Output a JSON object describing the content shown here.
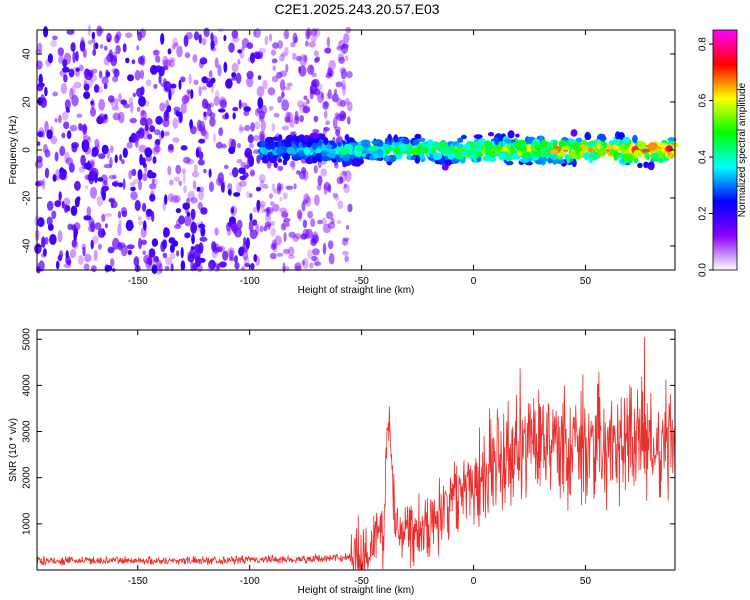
{
  "figure": {
    "title": "C2E1.2025.243.20.57.E03"
  },
  "chart_data": [
    {
      "type": "heatmap",
      "title": "C2E1.2025.243.20.57.E03",
      "xlabel": "Height of straight line (km)",
      "ylabel": "Frequency (Hz)",
      "xlim": [
        -195,
        90
      ],
      "ylim": [
        -50,
        50
      ],
      "x_ticks": [
        -150,
        -100,
        -50,
        0,
        50
      ],
      "y_ticks": [
        -40,
        -20,
        0,
        20,
        40
      ],
      "colorbar": {
        "label": "Normalized spectral amplitude",
        "range": [
          0,
          0.85
        ],
        "ticks": [
          0.0,
          0.2,
          0.4,
          0.6,
          0.8
        ],
        "colors": [
          "#ffffff",
          "#8a00ff",
          "#0000ff",
          "#00ffff",
          "#00ff00",
          "#ffff00",
          "#ff0000",
          "#ff00ff"
        ]
      },
      "description_regions": [
        {
          "x_range": [
            -195,
            -95
          ],
          "y_range": [
            -50,
            50
          ],
          "amplitude_range": [
            0.0,
            0.15
          ]
        },
        {
          "x_range": [
            -95,
            -55
          ],
          "y_range": [
            -50,
            50
          ],
          "amplitude_range": [
            0.0,
            0.08
          ]
        },
        {
          "x_range": [
            -95,
            90
          ],
          "y_range": [
            -8,
            8
          ],
          "amplitude_range": [
            0.1,
            0.85
          ]
        }
      ]
    },
    {
      "type": "line",
      "xlabel": "Height of straight line (km)",
      "ylabel": "SNR (10 * v/v)",
      "xlim": [
        -195,
        90
      ],
      "ylim": [
        0,
        5200
      ],
      "x_ticks": [
        -150,
        -100,
        -50,
        0,
        50
      ],
      "y_ticks": [
        1000,
        2000,
        3000,
        4000,
        5000
      ],
      "color": "#e8302e",
      "series": [
        {
          "x": [
            -195,
            -180,
            -160,
            -140,
            -120,
            -100,
            -80,
            -60,
            -50,
            -45,
            -40,
            -38,
            -35,
            -30,
            -25,
            -20,
            -15,
            -10,
            -5,
            0,
            5,
            10,
            15,
            20,
            25,
            30,
            35,
            40,
            45,
            50,
            55,
            60,
            65,
            70,
            75,
            80,
            85,
            90
          ],
          "y": [
            200,
            200,
            210,
            200,
            210,
            220,
            230,
            260,
            350,
            600,
            900,
            3500,
            1100,
            900,
            1000,
            1000,
            1300,
            1500,
            1800,
            2000,
            2200,
            2300,
            2400,
            2500,
            2600,
            2700,
            2600,
            2700,
            2600,
            2700,
            2800,
            2700,
            2800,
            2700,
            2800,
            2700,
            2800,
            2800
          ]
        }
      ]
    }
  ]
}
